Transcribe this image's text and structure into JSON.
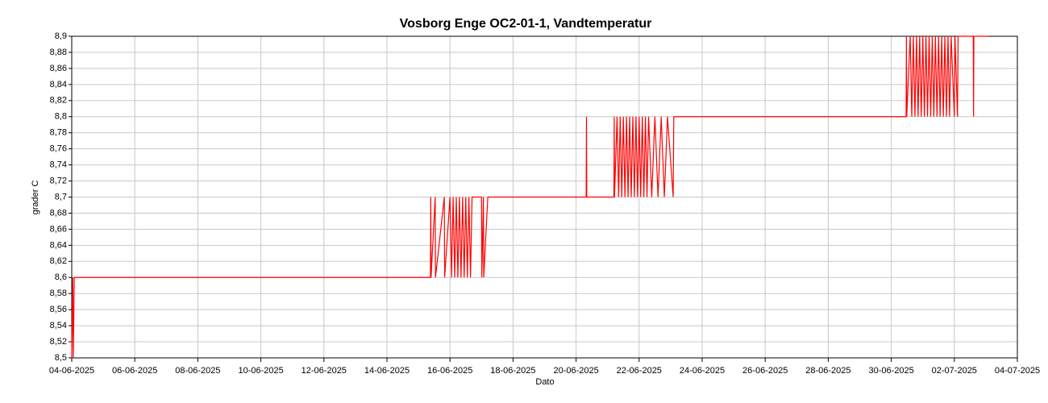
{
  "chart_data": {
    "type": "line",
    "title": "Vosborg Enge OC2-01-1, Vandtemperatur",
    "xlabel": "Dato",
    "ylabel": "grader C",
    "grid": true,
    "xlim": [
      0,
      30
    ],
    "ylim": [
      8.5,
      8.9
    ],
    "xticks": [
      {
        "value": 0,
        "label": "04-06-2025"
      },
      {
        "value": 2,
        "label": "06-06-2025"
      },
      {
        "value": 4,
        "label": "08-06-2025"
      },
      {
        "value": 6,
        "label": "10-06-2025"
      },
      {
        "value": 8,
        "label": "12-06-2025"
      },
      {
        "value": 10,
        "label": "14-06-2025"
      },
      {
        "value": 12,
        "label": "16-06-2025"
      },
      {
        "value": 14,
        "label": "18-06-2025"
      },
      {
        "value": 16,
        "label": "20-06-2025"
      },
      {
        "value": 18,
        "label": "22-06-2025"
      },
      {
        "value": 20,
        "label": "24-06-2025"
      },
      {
        "value": 22,
        "label": "26-06-2025"
      },
      {
        "value": 24,
        "label": "28-06-2025"
      },
      {
        "value": 26,
        "label": "30-06-2025"
      },
      {
        "value": 28,
        "label": "02-07-2025"
      },
      {
        "value": 30,
        "label": "04-07-2025"
      }
    ],
    "yticks": [
      {
        "value": 8.5,
        "label": "8,5"
      },
      {
        "value": 8.52,
        "label": "8,52"
      },
      {
        "value": 8.54,
        "label": "8,54"
      },
      {
        "value": 8.56,
        "label": "8,56"
      },
      {
        "value": 8.58,
        "label": "8,58"
      },
      {
        "value": 8.6,
        "label": "8,6"
      },
      {
        "value": 8.62,
        "label": "8,62"
      },
      {
        "value": 8.64,
        "label": "8,64"
      },
      {
        "value": 8.66,
        "label": "8,66"
      },
      {
        "value": 8.68,
        "label": "8,68"
      },
      {
        "value": 8.7,
        "label": "8,7"
      },
      {
        "value": 8.72,
        "label": "8,72"
      },
      {
        "value": 8.74,
        "label": "8,74"
      },
      {
        "value": 8.76,
        "label": "8,76"
      },
      {
        "value": 8.78,
        "label": "8,78"
      },
      {
        "value": 8.8,
        "label": "8,8"
      },
      {
        "value": 8.82,
        "label": "8,82"
      },
      {
        "value": 8.84,
        "label": "8,84"
      },
      {
        "value": 8.86,
        "label": "8,86"
      },
      {
        "value": 8.88,
        "label": "8,88"
      },
      {
        "value": 8.9,
        "label": "8,9"
      }
    ],
    "x": [
      0,
      0.03,
      0.05,
      0.08,
      11.38,
      11.39,
      11.4,
      11.53,
      11.54,
      11.82,
      11.83,
      12,
      12.05,
      12.1,
      12.15,
      12.2,
      12.25,
      12.3,
      12.35,
      12.4,
      12.45,
      12.5,
      12.55,
      12.6,
      12.65,
      12.7,
      13,
      13.01,
      13.06,
      13.07,
      13.2,
      16.32,
      16.33,
      16.34,
      17.2,
      17.21,
      17.22,
      17.3,
      17.35,
      17.4,
      17.45,
      17.5,
      17.55,
      17.6,
      17.65,
      17.7,
      17.75,
      17.8,
      17.85,
      17.9,
      17.95,
      18,
      18.05,
      18.1,
      18.15,
      18.2,
      18.25,
      18.3,
      18.4,
      18.5,
      18.6,
      18.7,
      18.8,
      18.9,
      19.08,
      19.1,
      26.47,
      26.48,
      26.49,
      26.6,
      26.65,
      26.7,
      26.75,
      26.8,
      26.85,
      26.9,
      26.95,
      27,
      27.05,
      27.1,
      27.15,
      27.2,
      27.25,
      27.3,
      27.35,
      27.4,
      27.45,
      27.5,
      27.55,
      27.6,
      27.65,
      27.7,
      27.75,
      27.8,
      27.85,
      27.9,
      28,
      28.02,
      28.1,
      28.12,
      28.6,
      28.61,
      28.62,
      29.08
    ],
    "series": [
      {
        "color": "#ff0000",
        "values": [
          8.5,
          8.6,
          8.5,
          8.6,
          8.6,
          8.7,
          8.6,
          8.7,
          8.6,
          8.7,
          8.6,
          8.7,
          8.6,
          8.7,
          8.6,
          8.7,
          8.6,
          8.7,
          8.6,
          8.7,
          8.6,
          8.7,
          8.6,
          8.7,
          8.6,
          8.7,
          8.7,
          8.6,
          8.7,
          8.6,
          8.7,
          8.7,
          8.8,
          8.7,
          8.7,
          8.8,
          8.7,
          8.8,
          8.7,
          8.8,
          8.7,
          8.8,
          8.7,
          8.8,
          8.7,
          8.8,
          8.7,
          8.8,
          8.7,
          8.8,
          8.7,
          8.8,
          8.7,
          8.8,
          8.7,
          8.8,
          8.7,
          8.8,
          8.7,
          8.8,
          8.7,
          8.8,
          8.7,
          8.8,
          8.7,
          8.8,
          8.8,
          8.9,
          8.8,
          8.9,
          8.8,
          8.9,
          8.8,
          8.9,
          8.8,
          8.9,
          8.8,
          8.9,
          8.8,
          8.9,
          8.8,
          8.9,
          8.8,
          8.9,
          8.8,
          8.9,
          8.8,
          8.9,
          8.8,
          8.9,
          8.8,
          8.9,
          8.8,
          8.9,
          8.8,
          8.9,
          8.8,
          8.9,
          8.8,
          8.9,
          8.9,
          8.8,
          8.9,
          8.9
        ]
      }
    ]
  }
}
